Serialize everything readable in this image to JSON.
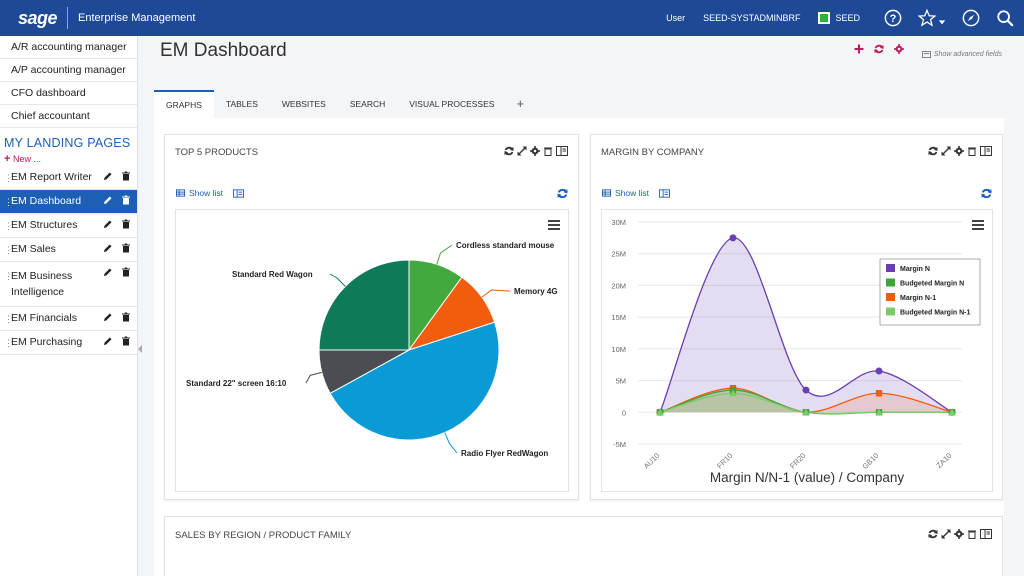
{
  "topbar": {
    "logo": "sage",
    "app_title": "Enterprise Management",
    "user_label": "User",
    "user_id": "SEED-SYSTADMINBRF",
    "folder": "SEED"
  },
  "sidebar": {
    "top_items": [
      {
        "label": "A/R accounting manager"
      },
      {
        "label": "A/P accounting manager"
      },
      {
        "label": "CFO dashboard"
      },
      {
        "label": "Chief accountant"
      }
    ],
    "landing_heading": "MY LANDING PAGES",
    "new_label": "New ...",
    "landing_pages": [
      {
        "label": "EM Report Writer"
      },
      {
        "label": "EM Dashboard"
      },
      {
        "label": "EM Structures"
      },
      {
        "label": "EM Sales"
      },
      {
        "label": "EM Business Intelligence"
      },
      {
        "label": "EM Financials"
      },
      {
        "label": "EM Purchasing"
      }
    ]
  },
  "page": {
    "title": "EM Dashboard",
    "show_advanced": "Show advanced fields"
  },
  "tabs": [
    {
      "label": "GRAPHS"
    },
    {
      "label": "TABLES"
    },
    {
      "label": "WEBSITES"
    },
    {
      "label": "SEARCH"
    },
    {
      "label": "VISUAL PROCESSES"
    }
  ],
  "tab_add": "+",
  "cards": {
    "top_products": {
      "title": "TOP 5 PRODUCTS",
      "show_list": "Show list"
    },
    "margin_company": {
      "title": "MARGIN BY COMPANY",
      "show_list": "Show list"
    },
    "sales_region": {
      "title": "SALES BY REGION / PRODUCT FAMILY"
    }
  },
  "colors": {
    "brand": "#1d4996",
    "accent": "#1d5fb5",
    "pink": "#c2185b"
  },
  "chart_data": [
    {
      "type": "pie",
      "slices": [
        {
          "label": "Cordless standard mouse",
          "value": 10,
          "color": "#43a93e"
        },
        {
          "label": "Memory 4G",
          "value": 10,
          "color": "#f25c0e"
        },
        {
          "label": "Radio Flyer RedWagon",
          "value": 47,
          "color": "#0a9bd7"
        },
        {
          "label": "Standard 22\" screen 16:10",
          "value": 8,
          "color": "#4a4d52"
        },
        {
          "label": "Standard Red Wagon",
          "value": 25,
          "color": "#0f7a5a"
        }
      ]
    },
    {
      "type": "line",
      "title": "",
      "xlabel": "Margin N/N-1 (value) / Company",
      "categories": [
        "AU10",
        "FR10",
        "FR20",
        "GB10",
        "ZA10"
      ],
      "yticks": [
        "30M",
        "25M",
        "20M",
        "15M",
        "10M",
        "5M",
        "0",
        "-5M"
      ],
      "ylim": [
        -5,
        30
      ],
      "legend_position": "right",
      "series": [
        {
          "name": "Margin N",
          "values": [
            0,
            27.5,
            3.5,
            6.5,
            0
          ],
          "color": "#6b3fb1",
          "marker": "circle"
        },
        {
          "name": "Budgeted Margin N",
          "values": [
            0,
            3.5,
            0,
            0,
            0
          ],
          "color": "#3da63a",
          "marker": "square"
        },
        {
          "name": "Margin N-1",
          "values": [
            0,
            3.8,
            0,
            3,
            0
          ],
          "color": "#f25c0e",
          "marker": "square"
        },
        {
          "name": "Budgeted Margin N-1",
          "values": [
            0,
            3,
            0,
            0,
            0
          ],
          "color": "#7ccb6a",
          "marker": "triangle"
        }
      ]
    }
  ]
}
